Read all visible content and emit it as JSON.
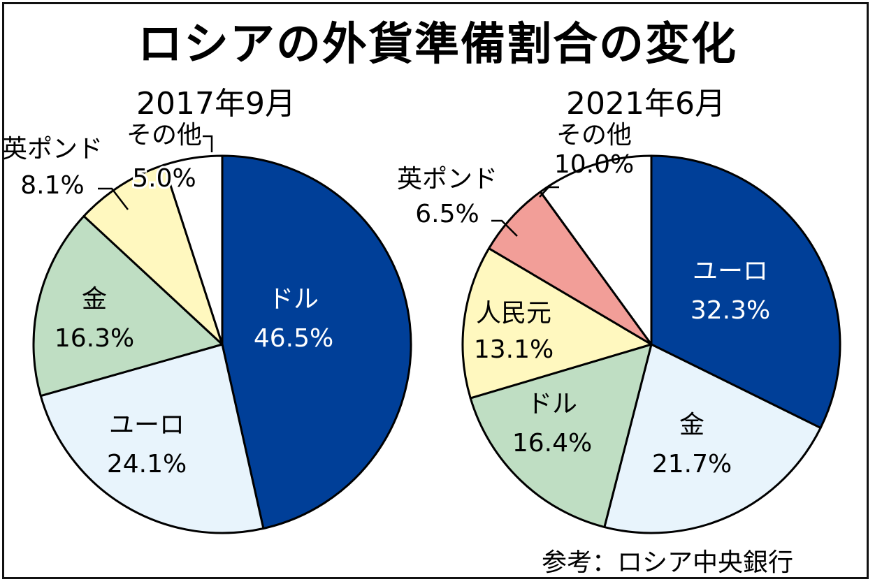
{
  "title": "ロシアの外貨準備割合の変化",
  "source": "参考：ロシア中央銀行",
  "chart_data": [
    {
      "type": "pie",
      "title": "2017年9月",
      "slices": [
        {
          "label": "ドル",
          "value": 46.5,
          "color": "#003f98",
          "text_color": "#ffffff"
        },
        {
          "label": "ユーロ",
          "value": 24.1,
          "color": "#e8f4fc",
          "text_color": "#000000"
        },
        {
          "label": "金",
          "value": 16.3,
          "color": "#bfdec3",
          "text_color": "#000000"
        },
        {
          "label": "英ポンド",
          "value": 8.1,
          "color": "#fff8bf",
          "text_color": "#000000"
        },
        {
          "label": "その他",
          "value": 5.0,
          "color": "#ffffff",
          "text_color": "#000000"
        }
      ]
    },
    {
      "type": "pie",
      "title": "2021年6月",
      "slices": [
        {
          "label": "ユーロ",
          "value": 32.3,
          "color": "#003f98",
          "text_color": "#ffffff"
        },
        {
          "label": "金",
          "value": 21.7,
          "color": "#e8f4fc",
          "text_color": "#000000"
        },
        {
          "label": "ドル",
          "value": 16.4,
          "color": "#bfdec3",
          "text_color": "#000000"
        },
        {
          "label": "人民元",
          "value": 13.1,
          "color": "#fff8bf",
          "text_color": "#000000"
        },
        {
          "label": "英ポンド",
          "value": 6.5,
          "color": "#f29e98",
          "text_color": "#000000"
        },
        {
          "label": "その他",
          "value": 10.0,
          "color": "#ffffff",
          "text_color": "#000000"
        }
      ]
    }
  ]
}
